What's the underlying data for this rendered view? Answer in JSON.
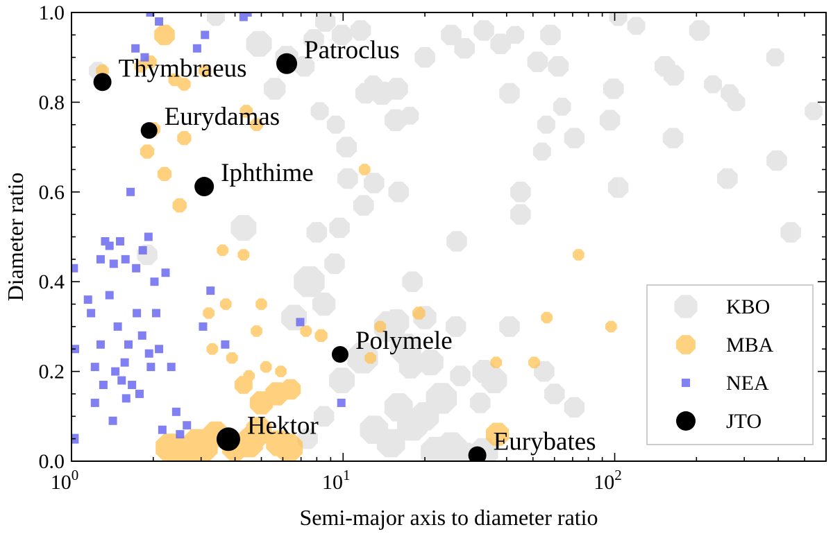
{
  "chart_data": {
    "type": "scatter",
    "xlabel": "Semi-major axis to diameter ratio",
    "ylabel": "Diameter ratio",
    "xscale": "log",
    "xlim": [
      1,
      600
    ],
    "ylim": [
      0,
      1.0
    ],
    "grid": false,
    "legend_placement": "lower-right",
    "x_ticks": [
      {
        "value": 1,
        "base": "10",
        "exp": "0"
      },
      {
        "value": 10,
        "base": "10",
        "exp": "1"
      },
      {
        "value": 100,
        "base": "10",
        "exp": "2"
      }
    ],
    "y_ticks": [
      {
        "value": 0.0,
        "label": "0.0"
      },
      {
        "value": 0.2,
        "label": "0.2"
      },
      {
        "value": 0.4,
        "label": "0.4"
      },
      {
        "value": 0.6,
        "label": "0.6"
      },
      {
        "value": 0.8,
        "label": "0.8"
      },
      {
        "value": 1.0,
        "label": "1.0"
      }
    ],
    "series": [
      {
        "name": "KBO",
        "color": "#d3d3d3",
        "marker": "octagon",
        "points": [
          [
            1.25,
            0.87
          ],
          [
            1.9,
            0.46
          ],
          [
            3.4,
            0.99
          ],
          [
            4.9,
            0.93
          ],
          [
            5.6,
            0.83
          ],
          [
            6.2,
            0.9
          ],
          [
            7.2,
            0.88
          ],
          [
            7.8,
            0.94
          ],
          [
            8.6,
            0.98
          ],
          [
            9.9,
            0.95
          ],
          [
            11.6,
            0.96
          ],
          [
            12.1,
            0.82
          ],
          [
            12.9,
            0.84
          ],
          [
            13.9,
            0.82
          ],
          [
            15.6,
            0.76
          ],
          [
            17.6,
            0.77
          ],
          [
            15.8,
            0.83
          ],
          [
            20,
            0.9
          ],
          [
            25,
            0.95
          ],
          [
            28,
            0.92
          ],
          [
            33,
            0.96
          ],
          [
            38,
            0.93
          ],
          [
            43,
            0.95
          ],
          [
            52,
            0.89
          ],
          [
            58,
            0.95
          ],
          [
            62,
            0.88
          ],
          [
            41,
            0.82
          ],
          [
            64,
            0.79
          ],
          [
            71,
            0.72
          ],
          [
            99,
            0.83
          ],
          [
            96,
            0.76
          ],
          [
            103,
            0.99
          ],
          [
            120,
            0.97
          ],
          [
            153,
            0.88
          ],
          [
            165,
            0.86
          ],
          [
            205,
            0.96
          ],
          [
            230,
            0.84
          ],
          [
            265,
            0.82
          ],
          [
            280,
            0.8
          ],
          [
            390,
            0.9
          ],
          [
            10.3,
            0.7
          ],
          [
            9.4,
            0.75
          ],
          [
            8.2,
            0.78
          ],
          [
            10.4,
            0.63
          ],
          [
            13,
            0.62
          ],
          [
            16,
            0.6
          ],
          [
            11.9,
            0.57
          ],
          [
            9.7,
            0.52
          ],
          [
            8,
            0.51
          ],
          [
            9.3,
            0.44
          ],
          [
            26.2,
            0.49
          ],
          [
            45,
            0.55
          ],
          [
            45,
            0.6
          ],
          [
            56,
            0.75
          ],
          [
            54,
            0.69
          ],
          [
            103,
            0.61
          ],
          [
            164,
            0.72
          ],
          [
            260,
            0.63
          ],
          [
            395,
            0.67
          ],
          [
            445,
            0.51
          ],
          [
            4.3,
            0.52
          ],
          [
            7.5,
            0.4
          ],
          [
            8.5,
            0.35
          ],
          [
            6.6,
            0.32
          ],
          [
            18,
            0.4
          ],
          [
            14.8,
            0.3
          ],
          [
            17.7,
            0.21
          ],
          [
            15.7,
            0.31
          ],
          [
            11.8,
            0.23
          ],
          [
            9.9,
            0.18
          ],
          [
            17,
            0.25
          ],
          [
            21,
            0.22
          ],
          [
            23,
            0.14
          ],
          [
            18,
            0.08
          ],
          [
            13,
            0.07
          ],
          [
            15,
            0.04
          ],
          [
            16,
            0.12
          ],
          [
            20,
            0.1
          ],
          [
            22,
            0.02
          ],
          [
            25,
            0.03
          ],
          [
            28,
            0.01
          ],
          [
            33,
            0.02
          ],
          [
            36,
            0.18
          ],
          [
            33,
            0.2
          ],
          [
            26,
            0.3
          ],
          [
            41,
            0.3
          ],
          [
            55,
            0.2
          ],
          [
            60,
            0.15
          ],
          [
            71,
            0.12
          ],
          [
            8.5,
            0.1
          ],
          [
            7.4,
            0.05
          ],
          [
            540,
            0.78
          ],
          [
            27,
            0.19
          ],
          [
            32,
            0.13
          ],
          [
            20,
            0.32
          ]
        ],
        "sizes": [
          14,
          16,
          14,
          20,
          17,
          18,
          16,
          16,
          16,
          16,
          16,
          16,
          14,
          18,
          17,
          14,
          17,
          16,
          16,
          16,
          16,
          16,
          14,
          16,
          16,
          16,
          16,
          14,
          16,
          16,
          16,
          14,
          14,
          16,
          16,
          16,
          14,
          14,
          14,
          14,
          16,
          14,
          14,
          16,
          16,
          16,
          16,
          16,
          16,
          16,
          16,
          16,
          16,
          14,
          14,
          16,
          16,
          16,
          16,
          16,
          20,
          24,
          18,
          20,
          16,
          24,
          18,
          20,
          24,
          20,
          24,
          20,
          24,
          24,
          22,
          22,
          22,
          22,
          24,
          24,
          22,
          22,
          20,
          18,
          16,
          16,
          16,
          16,
          16,
          16,
          16,
          14,
          16,
          16,
          18
        ]
      },
      {
        "name": "MBA",
        "color": "#ffc04d",
        "marker": "octagon",
        "points": [
          [
            1.3,
            0.87
          ],
          [
            2.2,
            0.95
          ],
          [
            1.9,
            0.69
          ],
          [
            2,
            0.74
          ],
          [
            2.2,
            0.64
          ],
          [
            2.5,
            0.57
          ],
          [
            2.6,
            0.72
          ],
          [
            2.6,
            0.84
          ],
          [
            3.1,
            0.87
          ],
          [
            4.4,
            0.78
          ],
          [
            4.8,
            0.75
          ],
          [
            2.4,
            0.85
          ],
          [
            1.95,
            0.89
          ],
          [
            1.8,
            0.88
          ],
          [
            12,
            0.65
          ],
          [
            36.6,
            0.22
          ],
          [
            50.5,
            0.22
          ],
          [
            56.2,
            0.32
          ],
          [
            19,
            0.33
          ],
          [
            73.6,
            0.46
          ],
          [
            97,
            0.3
          ],
          [
            13.7,
            0.3
          ],
          [
            12.6,
            0.23
          ],
          [
            8.3,
            0.28
          ],
          [
            7.3,
            0.29
          ],
          [
            3.6,
            0.47
          ],
          [
            4.3,
            0.46
          ],
          [
            5,
            0.35
          ],
          [
            3.7,
            0.35
          ],
          [
            4.8,
            0.29
          ],
          [
            3.3,
            0.25
          ],
          [
            3.2,
            0.33
          ],
          [
            3.9,
            0.23
          ],
          [
            4.5,
            0.19
          ],
          [
            5.2,
            0.21
          ],
          [
            5.9,
            0.2
          ],
          [
            5.7,
            0.15
          ],
          [
            5,
            0.13
          ],
          [
            4.3,
            0.17
          ],
          [
            6.4,
            0.16
          ],
          [
            3.4,
            0.06
          ],
          [
            4.5,
            0.04
          ],
          [
            4.8,
            0.06
          ],
          [
            4.9,
            0.07
          ],
          [
            5.8,
            0.04
          ],
          [
            6.3,
            0.03
          ],
          [
            2.6,
            0.02
          ],
          [
            2.3,
            0.03
          ],
          [
            2.7,
            0.01
          ],
          [
            2.9,
            0.04
          ],
          [
            3.1,
            0.03
          ],
          [
            4,
            0.03
          ],
          [
            37,
            0.06
          ]
        ],
        "sizes": [
          10,
          16,
          11,
          11,
          11,
          11,
          11,
          10,
          10,
          10,
          10,
          10,
          10,
          10,
          9,
          9,
          9,
          9,
          10,
          9,
          9,
          9,
          9,
          10,
          9,
          9,
          9,
          9,
          9,
          9,
          9,
          9,
          9,
          9,
          9,
          9,
          18,
          18,
          14,
          16,
          20,
          22,
          20,
          20,
          20,
          22,
          24,
          22,
          22,
          22,
          20,
          20,
          18
        ]
      },
      {
        "name": "NEA",
        "color": "#6b6bf0",
        "marker": "square",
        "points": [
          [
            1.02,
            0.43
          ],
          [
            1.02,
            0.05
          ],
          [
            1.03,
            0.25
          ],
          [
            1.15,
            0.36
          ],
          [
            1.22,
            0.21
          ],
          [
            1.28,
            0.45
          ],
          [
            1.33,
            0.49
          ],
          [
            1.38,
            0.48
          ],
          [
            1.43,
            0.44
          ],
          [
            1.51,
            0.49
          ],
          [
            1.58,
            0.45
          ],
          [
            1.65,
            0.6
          ],
          [
            1.73,
            0.43
          ],
          [
            1.83,
            0.47
          ],
          [
            1.92,
            0.5
          ],
          [
            2.02,
            0.4
          ],
          [
            1.48,
            0.3
          ],
          [
            1.62,
            0.26
          ],
          [
            1.74,
            0.33
          ],
          [
            1.57,
            0.22
          ],
          [
            1.82,
            0.28
          ],
          [
            1.93,
            0.24
          ],
          [
            1.53,
            0.18
          ],
          [
            1.67,
            0.17
          ],
          [
            1.42,
            0.09
          ],
          [
            1.59,
            0.14
          ],
          [
            1.78,
            0.15
          ],
          [
            1.96,
            0.21
          ],
          [
            2.1,
            0.25
          ],
          [
            2.33,
            0.21
          ],
          [
            2.43,
            0.11
          ],
          [
            2.51,
            0.06
          ],
          [
            2.66,
            0.08
          ],
          [
            3.05,
            0.3
          ],
          [
            3.25,
            0.38
          ],
          [
            2.16,
            0.07
          ],
          [
            6.95,
            0.31
          ],
          [
            9.85,
            0.13
          ],
          [
            1.72,
            0.92
          ],
          [
            1.86,
            0.9
          ],
          [
            1.95,
            1.0
          ],
          [
            2.1,
            0.98
          ],
          [
            2.9,
            0.92
          ],
          [
            3.1,
            0.95
          ],
          [
            4.3,
            0.99
          ],
          [
            4.45,
            1.0
          ],
          [
            3.68,
            0.26
          ],
          [
            1.38,
            0.37
          ],
          [
            1.45,
            0.2
          ],
          [
            1.31,
            0.17
          ],
          [
            1.18,
            0.33
          ],
          [
            1.28,
            0.26
          ],
          [
            1.22,
            0.13
          ],
          [
            2.22,
            0.42
          ],
          [
            2.05,
            0.33
          ]
        ],
        "sizes": [
          6,
          7,
          6,
          6,
          6,
          6,
          6,
          6,
          6,
          6,
          6,
          6,
          6,
          6,
          6,
          6,
          6,
          6,
          6,
          6,
          6,
          6,
          6,
          6,
          6,
          6,
          6,
          6,
          6,
          6,
          6,
          6,
          6,
          6,
          6,
          6,
          6,
          6,
          6,
          6,
          6,
          6,
          6,
          6,
          6,
          6,
          6,
          6,
          6,
          6,
          6,
          6,
          6,
          6,
          6
        ]
      },
      {
        "name": "JTO",
        "color": "#000000",
        "marker": "circle",
        "points": [
          [
            6.2,
            0.886
          ],
          [
            1.3,
            0.845
          ],
          [
            1.93,
            0.737
          ],
          [
            3.08,
            0.612
          ],
          [
            9.75,
            0.238
          ],
          [
            3.78,
            0.049
          ],
          [
            31.2,
            0.013
          ]
        ],
        "sizes": [
          15,
          13,
          12,
          14,
          12,
          17,
          13
        ],
        "labels": [
          "Patroclus",
          "Thymbraeus",
          "Eurydamas",
          "Iphthime",
          "Polymele",
          "Hektor",
          "Eurybates"
        ]
      }
    ]
  }
}
